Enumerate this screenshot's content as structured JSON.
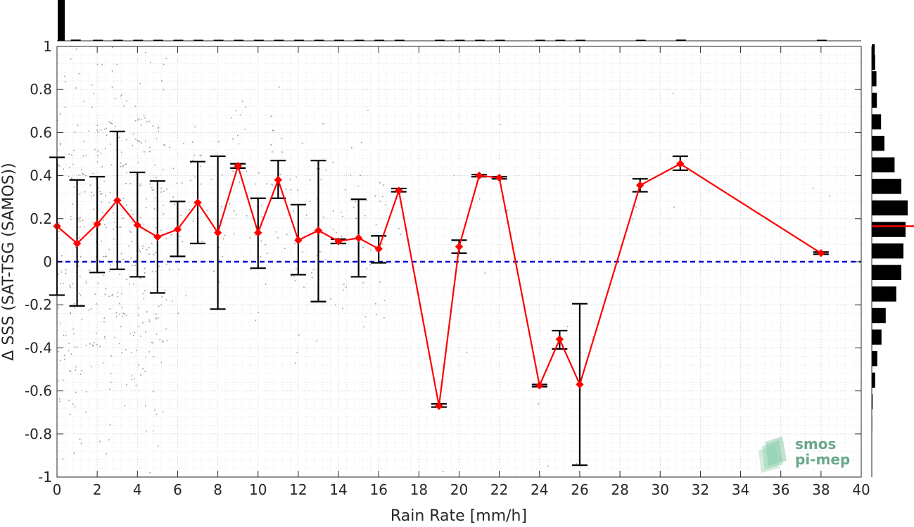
{
  "chart_data": {
    "type": "line",
    "xlabel": "Rain Rate [mm/h]",
    "ylabel": "Δ SSS (SAT-TSG (SAMOS))",
    "xlim": [
      0,
      40
    ],
    "ylim": [
      -1,
      1
    ],
    "xticks": [
      "0",
      "2",
      "4",
      "6",
      "8",
      "10",
      "12",
      "14",
      "16",
      "18",
      "20",
      "22",
      "24",
      "26",
      "28",
      "30",
      "32",
      "34",
      "36",
      "38",
      "40"
    ],
    "yticks": [
      "1",
      "0.8",
      "0.6",
      "0.4",
      "0.2",
      "0",
      "-0.2",
      "-0.4",
      "-0.6",
      "-0.8",
      "-1"
    ],
    "grid": true,
    "reference_line": {
      "y": 0,
      "color": "#0000d0",
      "style": "dashed"
    },
    "series": [
      {
        "color": "#ff0000",
        "x": [
          0,
          1,
          2,
          3,
          4,
          5,
          6,
          7,
          8,
          9,
          10,
          11,
          12,
          13,
          14,
          15,
          16,
          17,
          19,
          20,
          21,
          22,
          24,
          25,
          26,
          29,
          31,
          38
        ],
        "y": [
          0.165,
          0.085,
          0.175,
          0.285,
          0.17,
          0.115,
          0.15,
          0.275,
          0.135,
          0.445,
          0.135,
          0.38,
          0.1,
          0.145,
          0.095,
          0.11,
          0.06,
          0.33,
          -0.67,
          0.07,
          0.4,
          0.39,
          -0.575,
          -0.36,
          -0.57,
          0.355,
          0.455,
          0.04
        ],
        "err_low": [
          -0.155,
          -0.205,
          -0.05,
          -0.035,
          -0.07,
          -0.145,
          0.025,
          0.085,
          -0.22,
          0.435,
          -0.03,
          0.295,
          -0.06,
          -0.185,
          0.085,
          -0.07,
          -0.005,
          0.325,
          -0.675,
          0.04,
          0.395,
          0.385,
          -0.58,
          -0.405,
          -0.945,
          0.325,
          0.425,
          0.035
        ],
        "err_high": [
          0.485,
          0.38,
          0.395,
          0.605,
          0.415,
          0.375,
          0.28,
          0.465,
          0.49,
          0.455,
          0.295,
          0.47,
          0.265,
          0.47,
          0.105,
          0.29,
          0.12,
          0.34,
          -0.66,
          0.1,
          0.405,
          0.395,
          -0.57,
          -0.32,
          -0.195,
          0.385,
          0.49,
          0.045
        ]
      }
    ],
    "top_histogram": {
      "x": [
        0,
        0.9,
        2,
        3,
        4,
        5,
        6,
        7,
        8,
        9,
        10,
        11,
        12,
        13,
        14,
        15,
        16,
        17,
        19,
        20,
        21,
        22,
        24,
        25,
        26,
        29,
        31,
        38
      ],
      "counts": [
        1.0,
        0.03,
        0.02,
        0.02,
        0.02,
        0.02,
        0.02,
        0.02,
        0.02,
        0.02,
        0.02,
        0.02,
        0.02,
        0.02,
        0.02,
        0.02,
        0.02,
        0.02,
        0.02,
        0.02,
        0.01,
        0.01,
        0.01,
        0.01,
        0.02,
        0.02,
        0.03,
        0.01
      ]
    },
    "right_histogram": {
      "bin_centers": [
        0.975,
        0.925,
        0.85,
        0.75,
        0.65,
        0.55,
        0.45,
        0.35,
        0.25,
        0.15,
        0.05,
        -0.05,
        -0.15,
        -0.25,
        -0.35,
        -0.45,
        -0.55,
        -0.65,
        -0.75
      ],
      "counts": [
        0.07,
        0.08,
        0.11,
        0.12,
        0.22,
        0.3,
        0.54,
        0.7,
        0.85,
        0.8,
        0.75,
        0.7,
        0.58,
        0.33,
        0.23,
        0.13,
        0.08,
        0.02,
        0.01
      ],
      "median": 0.165,
      "median_color": "#ff0000"
    }
  },
  "logo": {
    "line1": "smos",
    "line2": "pi-mep"
  }
}
